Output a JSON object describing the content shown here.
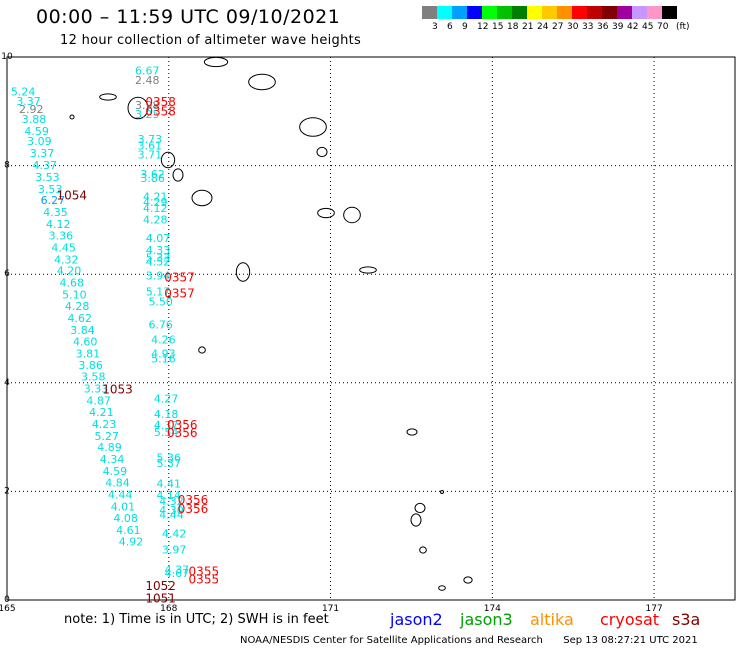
{
  "header": {
    "title": "00:00 – 11:59 UTC 09/10/2021",
    "subtitle": "12 hour collection of altimeter wave heights"
  },
  "legend": {
    "unit": "(ft)",
    "bins": [
      {
        "label": "3",
        "color": "#7f7f7f"
      },
      {
        "label": "6",
        "color": "#00ffff"
      },
      {
        "label": "9",
        "color": "#00a0ff"
      },
      {
        "label": "12",
        "color": "#0000ff"
      },
      {
        "label": "15",
        "color": "#00ff00"
      },
      {
        "label": "18",
        "color": "#00c000"
      },
      {
        "label": "21",
        "color": "#008000"
      },
      {
        "label": "24",
        "color": "#ffff00"
      },
      {
        "label": "27",
        "color": "#ffc800"
      },
      {
        "label": "30",
        "color": "#ff9000"
      },
      {
        "label": "33",
        "color": "#ff0000"
      },
      {
        "label": "36",
        "color": "#c00000"
      },
      {
        "label": "39",
        "color": "#800000"
      },
      {
        "label": "42",
        "color": "#a000a0"
      },
      {
        "label": "45",
        "color": "#c896ff"
      },
      {
        "label": "70",
        "color": "#ff96c8"
      },
      {
        "label": "",
        "color": "#000000"
      }
    ]
  },
  "map": {
    "lon_ticks": [
      "165",
      "168",
      "171",
      "174",
      "177"
    ],
    "lat_ticks": [
      "10",
      "8",
      "6",
      "4",
      "2",
      "0"
    ],
    "lon_range": [
      165,
      178.5
    ],
    "lat_range": [
      0,
      10
    ],
    "time_labels": [
      {
        "text": "0358",
        "lon": 167.85,
        "lat": 9.1,
        "color": "#ff0000"
      },
      {
        "text": "0358",
        "lon": 167.85,
        "lat": 8.92,
        "color": "#ff0000"
      },
      {
        "text": "1054",
        "lon": 166.2,
        "lat": 7.38,
        "color": "#800000"
      },
      {
        "text": "0357",
        "lon": 168.2,
        "lat": 5.87,
        "color": "#ff0000"
      },
      {
        "text": "0357",
        "lon": 168.2,
        "lat": 5.57,
        "color": "#ff0000"
      },
      {
        "text": "1053",
        "lon": 167.05,
        "lat": 3.8,
        "color": "#800000"
      },
      {
        "text": "0356",
        "lon": 168.25,
        "lat": 3.15,
        "color": "#ff0000"
      },
      {
        "text": "0356",
        "lon": 168.25,
        "lat": 3.0,
        "color": "#ff0000"
      },
      {
        "text": "0356",
        "lon": 168.45,
        "lat": 1.77,
        "color": "#ff0000"
      },
      {
        "text": "0356",
        "lon": 168.45,
        "lat": 1.6,
        "color": "#ff0000"
      },
      {
        "text": "0355",
        "lon": 168.65,
        "lat": 0.45,
        "color": "#ff0000"
      },
      {
        "text": "0355",
        "lon": 168.65,
        "lat": 0.3,
        "color": "#ff0000"
      },
      {
        "text": "1052",
        "lon": 167.85,
        "lat": 0.18,
        "color": "#800000"
      },
      {
        "text": "1051",
        "lon": 167.85,
        "lat": -0.05,
        "color": "#800000"
      }
    ],
    "wave_points": [
      {
        "v": "6.67",
        "lon": 167.6,
        "lat": 9.68,
        "c": "#00e0e0"
      },
      {
        "v": "2.48",
        "lon": 167.6,
        "lat": 9.5,
        "c": "#7f7f7f"
      },
      {
        "v": "3.98",
        "lon": 167.6,
        "lat": 9.04,
        "c": "#7f7f7f"
      },
      {
        "v": "3.25",
        "lon": 167.6,
        "lat": 8.88,
        "c": "#00e0e0"
      },
      {
        "v": "3.73",
        "lon": 167.65,
        "lat": 8.42,
        "c": "#00e0e0"
      },
      {
        "v": "3.61",
        "lon": 167.65,
        "lat": 8.3,
        "c": "#00e0e0"
      },
      {
        "v": "3.71",
        "lon": 167.65,
        "lat": 8.13,
        "c": "#00e0e0"
      },
      {
        "v": "3.62",
        "lon": 167.7,
        "lat": 7.77,
        "c": "#00e0e0"
      },
      {
        "v": "3.86",
        "lon": 167.7,
        "lat": 7.7,
        "c": "#00e0e0"
      },
      {
        "v": "4.21",
        "lon": 167.75,
        "lat": 7.36,
        "c": "#00e0e0"
      },
      {
        "v": "4.29",
        "lon": 167.75,
        "lat": 7.26,
        "c": "#00e0e0"
      },
      {
        "v": "4.12",
        "lon": 167.75,
        "lat": 7.15,
        "c": "#00e0e0"
      },
      {
        "v": "4.28",
        "lon": 167.75,
        "lat": 6.93,
        "c": "#00e0e0"
      },
      {
        "v": "4.07",
        "lon": 167.8,
        "lat": 6.59,
        "c": "#00e0e0"
      },
      {
        "v": "4.33",
        "lon": 167.8,
        "lat": 6.37,
        "c": "#00e0e0"
      },
      {
        "v": "5.33",
        "lon": 167.8,
        "lat": 6.23,
        "c": "#00e0e0"
      },
      {
        "v": "4.52",
        "lon": 167.8,
        "lat": 6.16,
        "c": "#00e0e0"
      },
      {
        "v": "3.94",
        "lon": 167.8,
        "lat": 5.9,
        "c": "#00e0e0"
      },
      {
        "v": "5.17",
        "lon": 167.8,
        "lat": 5.61,
        "c": "#00e0e0"
      },
      {
        "v": "5.50",
        "lon": 167.85,
        "lat": 5.42,
        "c": "#00e0e0"
      },
      {
        "v": "6.76",
        "lon": 167.85,
        "lat": 5.0,
        "c": "#00e0e0"
      },
      {
        "v": "4.26",
        "lon": 167.9,
        "lat": 4.72,
        "c": "#00e0e0"
      },
      {
        "v": "4.93",
        "lon": 167.9,
        "lat": 4.47,
        "c": "#00e0e0"
      },
      {
        "v": "5.16",
        "lon": 167.9,
        "lat": 4.37,
        "c": "#00e0e0"
      },
      {
        "v": "4.27",
        "lon": 167.95,
        "lat": 3.64,
        "c": "#00e0e0"
      },
      {
        "v": "4.18",
        "lon": 167.95,
        "lat": 3.35,
        "c": "#00e0e0"
      },
      {
        "v": "4.37",
        "lon": 167.95,
        "lat": 3.15,
        "c": "#00e0e0"
      },
      {
        "v": "5.54",
        "lon": 167.95,
        "lat": 3.02,
        "c": "#00e0e0"
      },
      {
        "v": "5.36",
        "lon": 168.0,
        "lat": 2.55,
        "c": "#00e0e0"
      },
      {
        "v": "5.37",
        "lon": 168.0,
        "lat": 2.45,
        "c": "#00e0e0"
      },
      {
        "v": "4.41",
        "lon": 168.0,
        "lat": 2.07,
        "c": "#00e0e0"
      },
      {
        "v": "4.14",
        "lon": 168.0,
        "lat": 1.86,
        "c": "#00e0e0"
      },
      {
        "v": "4.32",
        "lon": 168.05,
        "lat": 1.75,
        "c": "#00e0e0"
      },
      {
        "v": "4.30",
        "lon": 168.05,
        "lat": 1.58,
        "c": "#00e0e0"
      },
      {
        "v": "4.44",
        "lon": 168.05,
        "lat": 1.5,
        "c": "#00e0e0"
      },
      {
        "v": "4.42",
        "lon": 168.1,
        "lat": 1.15,
        "c": "#00e0e0"
      },
      {
        "v": "3.97",
        "lon": 168.1,
        "lat": 0.86,
        "c": "#00e0e0"
      },
      {
        "v": "4.37",
        "lon": 168.15,
        "lat": 0.49,
        "c": "#00e0e0"
      },
      {
        "v": "4.67",
        "lon": 168.15,
        "lat": 0.42,
        "c": "#00e0e0"
      },
      {
        "v": "5.24",
        "lon": 165.3,
        "lat": 9.29,
        "c": "#00e0e0"
      },
      {
        "v": "3.37",
        "lon": 165.4,
        "lat": 9.12,
        "c": "#00e0e0"
      },
      {
        "v": "2.92",
        "lon": 165.45,
        "lat": 8.97,
        "c": "#7f7f7f"
      },
      {
        "v": "3.88",
        "lon": 165.5,
        "lat": 8.78,
        "c": "#00e0e0"
      },
      {
        "v": "4.59",
        "lon": 165.55,
        "lat": 8.56,
        "c": "#00e0e0"
      },
      {
        "v": "3.09",
        "lon": 165.6,
        "lat": 8.38,
        "c": "#00e0e0"
      },
      {
        "v": "3.37",
        "lon": 165.65,
        "lat": 8.16,
        "c": "#00e0e0"
      },
      {
        "v": "4.37",
        "lon": 165.7,
        "lat": 7.94,
        "c": "#00e0e0"
      },
      {
        "v": "3.53",
        "lon": 165.75,
        "lat": 7.72,
        "c": "#00e0e0"
      },
      {
        "v": "3.53",
        "lon": 165.8,
        "lat": 7.5,
        "c": "#00e0e0"
      },
      {
        "v": "6.27",
        "lon": 165.85,
        "lat": 7.29,
        "c": "#00a0ff"
      },
      {
        "v": "4.35",
        "lon": 165.9,
        "lat": 7.07,
        "c": "#00e0e0"
      },
      {
        "v": "4.12",
        "lon": 165.95,
        "lat": 6.85,
        "c": "#00e0e0"
      },
      {
        "v": "3.36",
        "lon": 166.0,
        "lat": 6.64,
        "c": "#00e0e0"
      },
      {
        "v": "4.45",
        "lon": 166.05,
        "lat": 6.42,
        "c": "#00e0e0"
      },
      {
        "v": "4.32",
        "lon": 166.1,
        "lat": 6.2,
        "c": "#00e0e0"
      },
      {
        "v": "4.20",
        "lon": 166.15,
        "lat": 5.99,
        "c": "#00e0e0"
      },
      {
        "v": "4.68",
        "lon": 166.2,
        "lat": 5.77,
        "c": "#00e0e0"
      },
      {
        "v": "5.10",
        "lon": 166.25,
        "lat": 5.55,
        "c": "#00e0e0"
      },
      {
        "v": "4.28",
        "lon": 166.3,
        "lat": 5.34,
        "c": "#00e0e0"
      },
      {
        "v": "4.62",
        "lon": 166.35,
        "lat": 5.12,
        "c": "#00e0e0"
      },
      {
        "v": "3.84",
        "lon": 166.4,
        "lat": 4.9,
        "c": "#00e0e0"
      },
      {
        "v": "4.60",
        "lon": 166.45,
        "lat": 4.69,
        "c": "#00e0e0"
      },
      {
        "v": "3.81",
        "lon": 166.5,
        "lat": 4.47,
        "c": "#00e0e0"
      },
      {
        "v": "3.86",
        "lon": 166.55,
        "lat": 4.25,
        "c": "#00e0e0"
      },
      {
        "v": "3.58",
        "lon": 166.6,
        "lat": 4.04,
        "c": "#00e0e0"
      },
      {
        "v": "3.33",
        "lon": 166.65,
        "lat": 3.82,
        "c": "#00e0e0"
      },
      {
        "v": "4.87",
        "lon": 166.7,
        "lat": 3.6,
        "c": "#00e0e0"
      },
      {
        "v": "4.21",
        "lon": 166.75,
        "lat": 3.39,
        "c": "#00e0e0"
      },
      {
        "v": "4.23",
        "lon": 166.8,
        "lat": 3.17,
        "c": "#00e0e0"
      },
      {
        "v": "5.27",
        "lon": 166.85,
        "lat": 2.95,
        "c": "#00e0e0"
      },
      {
        "v": "4.89",
        "lon": 166.9,
        "lat": 2.74,
        "c": "#00e0e0"
      },
      {
        "v": "4.34",
        "lon": 166.95,
        "lat": 2.52,
        "c": "#00e0e0"
      },
      {
        "v": "4.59",
        "lon": 167.0,
        "lat": 2.3,
        "c": "#00e0e0"
      },
      {
        "v": "4.84",
        "lon": 167.05,
        "lat": 2.09,
        "c": "#00e0e0"
      },
      {
        "v": "4.44",
        "lon": 167.1,
        "lat": 1.87,
        "c": "#00e0e0"
      },
      {
        "v": "4.01",
        "lon": 167.15,
        "lat": 1.65,
        "c": "#00e0e0"
      },
      {
        "v": "4.08",
        "lon": 167.2,
        "lat": 1.44,
        "c": "#00e0e0"
      },
      {
        "v": "4.61",
        "lon": 167.25,
        "lat": 1.22,
        "c": "#00e0e0"
      },
      {
        "v": "4.92",
        "lon": 167.3,
        "lat": 1.0,
        "c": "#00e0e0"
      }
    ]
  },
  "footer": {
    "note": "note: 1) Time is in UTC; 2) SWH is in feet",
    "sat1": "jason2",
    "sat1_color": "#0000ff",
    "sat2": "jason3",
    "sat2_color": "#00a000",
    "sat3": "altika",
    "sat3_color": "#ff9000",
    "sat4": "cryosat",
    "sat4_color": "#ff0000",
    "sat5": "s3a",
    "sat5_color": "#800000",
    "credit": "NOAA/NESDIS Center for Satellite Applications and Research",
    "timestamp": "Sep 13 08:27:21 UTC 2021"
  }
}
